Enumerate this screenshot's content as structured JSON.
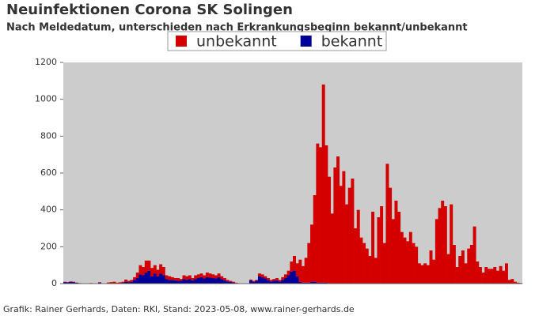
{
  "chart_data": {
    "type": "stacked-bar",
    "title": "Neuinfektionen Corona SK Solingen",
    "subtitle": "Nach Meldedatum, unterschieden nach Erkrankungsbeginn bekannt/unbekannt",
    "source": "Grafik: Rainer Gerhards, Daten: RKI, Stand: 2023-05-08, www.rainer-gerhards.de",
    "legend": "top",
    "ylim": [
      0,
      1200
    ],
    "yticks": [
      0,
      200,
      400,
      600,
      800,
      1000,
      1200
    ],
    "categories": [
      null,
      null,
      null,
      null,
      null,
      null,
      null,
      null,
      null,
      null,
      null,
      null,
      null,
      null,
      null,
      null,
      null,
      null,
      null,
      null,
      null,
      null,
      null,
      null,
      null,
      null,
      null,
      null,
      null,
      null,
      null,
      null,
      null,
      null,
      null,
      null,
      null,
      null,
      null,
      null,
      null,
      null,
      null,
      null,
      null,
      null,
      null,
      null,
      null,
      null,
      null,
      null,
      null,
      null,
      null,
      null,
      null,
      null,
      null,
      null,
      null,
      null,
      null,
      null,
      null,
      null,
      null,
      null,
      null,
      null,
      null,
      null,
      null,
      null,
      null,
      null,
      null,
      null,
      null,
      null,
      null,
      null,
      null,
      null,
      null,
      null,
      null,
      null,
      null,
      null,
      null,
      null,
      null,
      null,
      null,
      null,
      null,
      null,
      null,
      null,
      null,
      null,
      null,
      null,
      null,
      null,
      null,
      null,
      null,
      null,
      null,
      null,
      null,
      null,
      null,
      null,
      null,
      null,
      null,
      null,
      null,
      null,
      null,
      null,
      null,
      null,
      null,
      null,
      null,
      null,
      null,
      null,
      null,
      null,
      null,
      null,
      null,
      null,
      null,
      null,
      null,
      null,
      null,
      null,
      null,
      null,
      null,
      null,
      null,
      null,
      null,
      null,
      null,
      null,
      null,
      null,
      null,
      null
    ],
    "series": [
      {
        "name": "unbekannt",
        "color": "#d40000",
        "values": [
          2,
          1,
          3,
          2,
          1,
          1,
          0,
          0,
          0,
          1,
          1,
          0,
          3,
          1,
          0,
          5,
          7,
          8,
          4,
          6,
          6,
          12,
          7,
          10,
          15,
          30,
          50,
          45,
          65,
          55,
          45,
          45,
          35,
          50,
          45,
          20,
          20,
          15,
          12,
          15,
          10,
          20,
          20,
          20,
          12,
          20,
          20,
          20,
          17,
          25,
          23,
          20,
          17,
          20,
          15,
          12,
          8,
          6,
          4,
          2,
          1,
          0,
          0,
          1,
          4,
          5,
          5,
          15,
          15,
          12,
          10,
          8,
          10,
          12,
          8,
          15,
          20,
          25,
          55,
          80,
          70,
          120,
          90,
          135,
          215,
          310,
          470,
          755,
          735,
          1075,
          745,
          580,
          380,
          630,
          690,
          530,
          610,
          430,
          520,
          570,
          300,
          400,
          250,
          220,
          190,
          150,
          390,
          140,
          360,
          420,
          220,
          650,
          520,
          350,
          450,
          390,
          280,
          250,
          230,
          280,
          220,
          200,
          110,
          100,
          110,
          100,
          180,
          130,
          350,
          410,
          450,
          420,
          160,
          430,
          210,
          90,
          150,
          180,
          110,
          190,
          210,
          310,
          120,
          90,
          60,
          90,
          80,
          80,
          90,
          70,
          95,
          70,
          110,
          20,
          25,
          10,
          5,
          3
        ]
      },
      {
        "name": "bekannt",
        "color": "#000099",
        "values": [
          8,
          7,
          9,
          8,
          5,
          2,
          0,
          0,
          2,
          2,
          1,
          0,
          5,
          1,
          0,
          1,
          1,
          2,
          1,
          1,
          4,
          10,
          8,
          10,
          20,
          30,
          50,
          45,
          60,
          70,
          40,
          55,
          40,
          55,
          45,
          25,
          20,
          20,
          18,
          15,
          15,
          25,
          20,
          25,
          18,
          25,
          30,
          35,
          28,
          35,
          32,
          30,
          28,
          35,
          25,
          18,
          12,
          9,
          6,
          3,
          1,
          0,
          0,
          1,
          18,
          10,
          15,
          40,
          35,
          28,
          20,
          12,
          15,
          18,
          12,
          20,
          30,
          45,
          65,
          70,
          40,
          10,
          5,
          5,
          5,
          10,
          10,
          5,
          5,
          5,
          5,
          0,
          0,
          0,
          0,
          0,
          0,
          0,
          0,
          0,
          0,
          0,
          0,
          0,
          0,
          0,
          0,
          0,
          0,
          0,
          0,
          0,
          0,
          0,
          0,
          0,
          0,
          0,
          0,
          0,
          0,
          0,
          0,
          0,
          0,
          0,
          0,
          0,
          0,
          0,
          0,
          0,
          0,
          0,
          0,
          0,
          0,
          0,
          0,
          0,
          0,
          0,
          0,
          0,
          0,
          0,
          0,
          0,
          0,
          0,
          0,
          0,
          0,
          0,
          0,
          0,
          0,
          0
        ]
      }
    ]
  }
}
